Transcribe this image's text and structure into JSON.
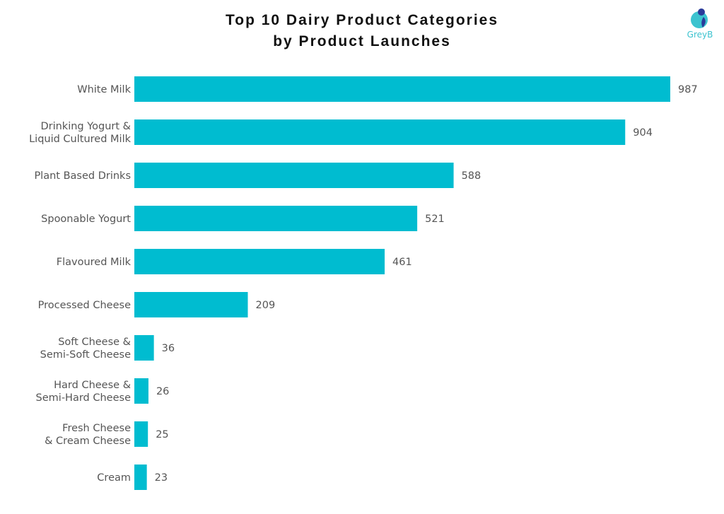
{
  "chart_data": {
    "type": "bar",
    "orientation": "horizontal",
    "title": "Top 10 Dairy Product Categories by Product Launches",
    "title_lines": [
      "Top 10 Dairy Product Categories",
      "by Product Launches"
    ],
    "categories": [
      [
        "White Milk"
      ],
      [
        "Drinking Yogurt &",
        "Liquid Cultured Milk"
      ],
      [
        "Plant Based Drinks"
      ],
      [
        "Spoonable Yogurt"
      ],
      [
        "Flavoured Milk"
      ],
      [
        "Processed Cheese"
      ],
      [
        "Soft Cheese &",
        "Semi-Soft Cheese"
      ],
      [
        "Hard Cheese &",
        "Semi-Hard Cheese"
      ],
      [
        "Fresh Cheese",
        "& Cream Cheese"
      ],
      [
        "Cream"
      ]
    ],
    "values": [
      987,
      904,
      588,
      521,
      461,
      209,
      36,
      26,
      25,
      23
    ],
    "xlim": [
      0,
      987
    ],
    "grid": false,
    "data_labels": true,
    "bar_color": "#00BCD0"
  },
  "logo": {
    "text": "GreyB"
  }
}
